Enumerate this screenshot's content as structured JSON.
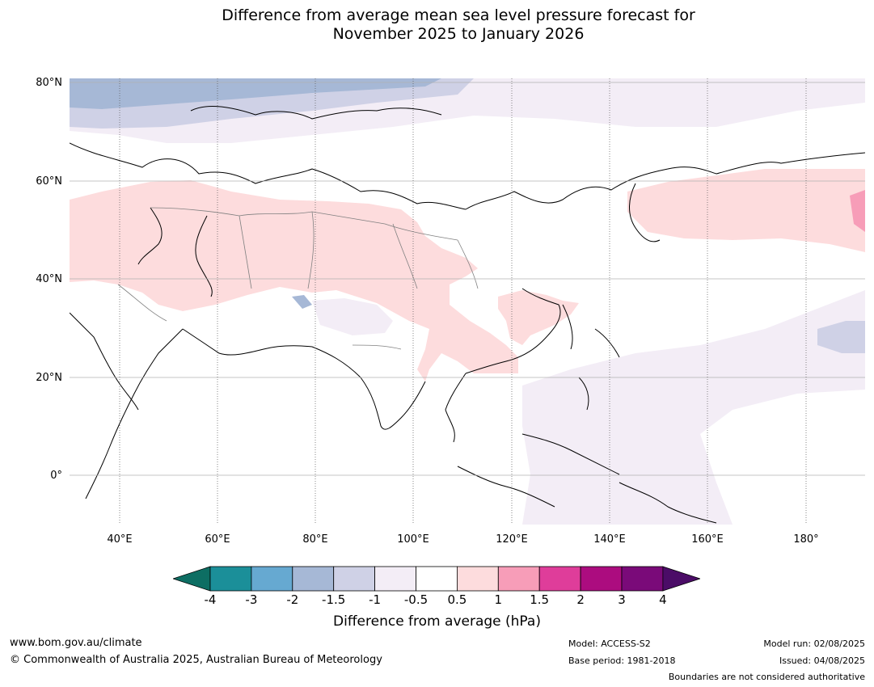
{
  "title_line1": "Difference from average mean sea level pressure forecast for",
  "title_line2": "November 2025 to January 2026",
  "lat_labels": [
    "80°N",
    "60°N",
    "40°N",
    "20°N",
    "0°"
  ],
  "lon_labels": [
    "40°E",
    "60°E",
    "80°E",
    "100°E",
    "120°E",
    "140°E",
    "160°E",
    "180°"
  ],
  "colorbar": {
    "tick_labels": [
      "-4",
      "-3",
      "-2",
      "-1.5",
      "-1",
      "-0.5",
      "0.5",
      "1",
      "1.5",
      "2",
      "3",
      "4"
    ],
    "colors": [
      "#0d6e63",
      "#1b8f99",
      "#66a9d1",
      "#a6b8d6",
      "#cfd1e6",
      "#f3edf6",
      "#ffffff",
      "#fddcdd",
      "#f79db8",
      "#df3d9a",
      "#ac0c7f",
      "#7a0a79",
      "#4b0c67"
    ],
    "label": "Difference from average (hPa)"
  },
  "footer": {
    "website": "www.bom.gov.au/climate",
    "copyright": "© Commonwealth of Australia 2025, Australian Bureau of Meteorology",
    "model": "Model: ACCESS-S2",
    "base_period": "Base period: 1981-2018",
    "model_run": "Model run: 02/08/2025",
    "issued": "Issued: 04/08/2025",
    "disclaimer": "Boundaries are not considered authoritative"
  }
}
